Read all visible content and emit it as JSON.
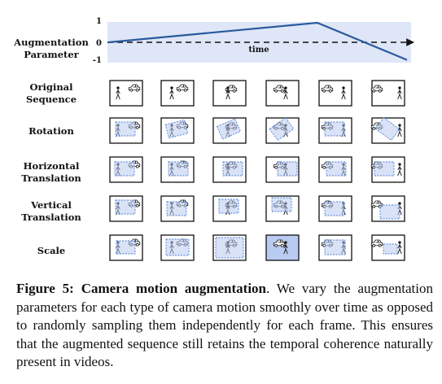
{
  "chart": {
    "row_label": [
      "Augmentation",
      "Parameter"
    ],
    "ticks": [
      "1",
      "0",
      "-1"
    ],
    "x_axis_label": "time",
    "line_points": [
      [
        0,
        0
      ],
      [
        0.7,
        1
      ],
      [
        1,
        -0.9
      ]
    ],
    "colors": {
      "band": "#dfe6f7",
      "line": "#2a5a9c",
      "box_fill": "#b9cbf0",
      "box_stroke": "#4a7fd6"
    }
  },
  "rows": [
    {
      "label": [
        "Original",
        "Sequence"
      ],
      "type": "original"
    },
    {
      "label": [
        "Rotation"
      ],
      "type": "rotation"
    },
    {
      "label": [
        "Horizontal",
        "Translation"
      ],
      "type": "htrans"
    },
    {
      "label": [
        "Vertical",
        "Translation"
      ],
      "type": "vtrans"
    },
    {
      "label": [
        "Scale"
      ],
      "type": "scale"
    }
  ],
  "caption": {
    "label": "Figure 5:",
    "title": "Camera motion augmentation",
    "text": ". We vary the augmentation parameters for each type of camera motion smoothly over time as opposed to randomly sampling them independently for each frame. This ensures that the augmented sequence still retains the temporal coherence naturally present in videos."
  }
}
